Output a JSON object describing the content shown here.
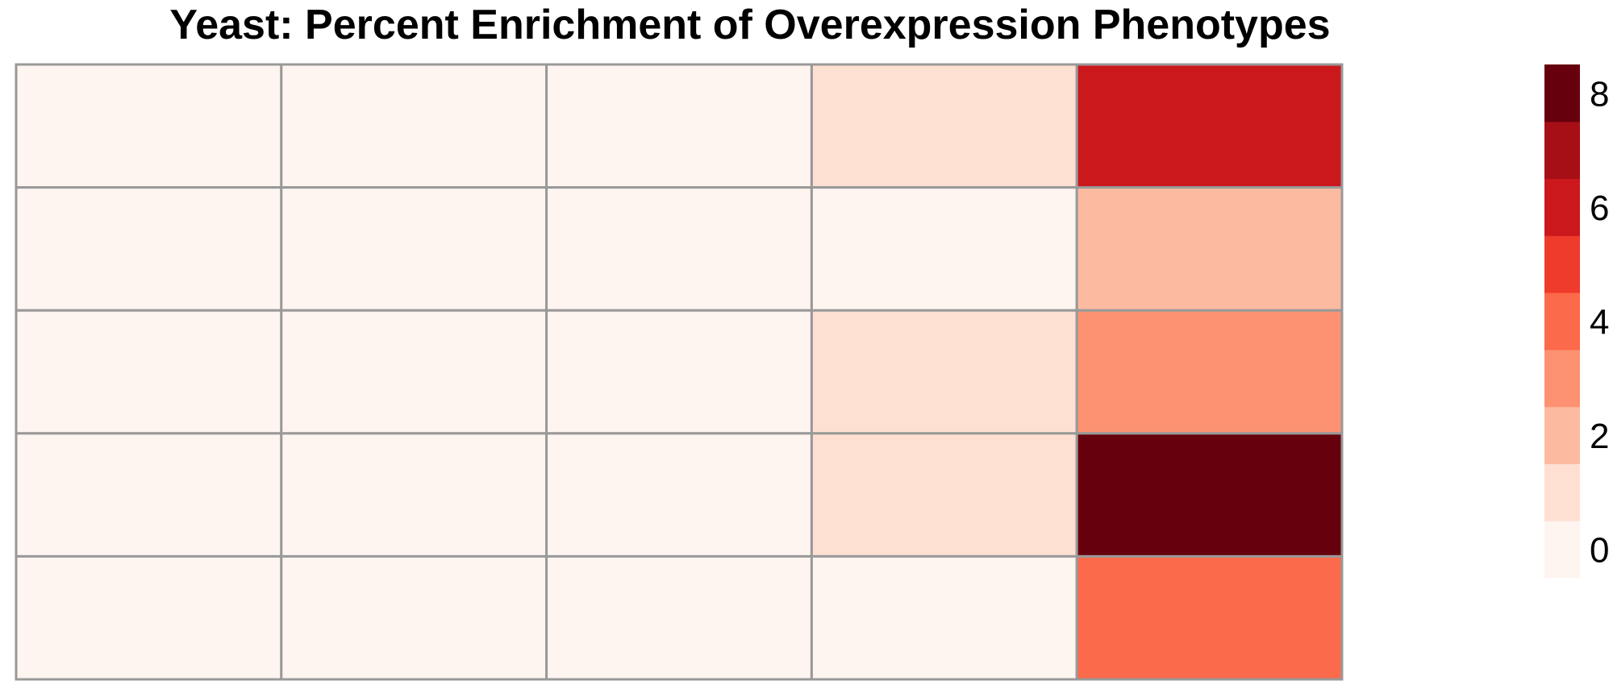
{
  "chart_data": {
    "type": "heatmap",
    "title": "Yeast: Percent Enrichment of Overexpression Phenotypes",
    "grid": true,
    "rows": 5,
    "cols": 5,
    "values": [
      [
        0.2,
        0.2,
        0.2,
        1.5,
        6.5
      ],
      [
        0.2,
        0.2,
        0.2,
        0.5,
        2.5
      ],
      [
        0.2,
        0.2,
        0.2,
        1.5,
        3.5
      ],
      [
        0.2,
        0.2,
        0.2,
        1.5,
        8.5
      ],
      [
        0.2,
        0.2,
        0.2,
        0.5,
        4.5
      ]
    ],
    "color_bins": [
      {
        "min": 0,
        "max": 1,
        "color": "#FFF5F0"
      },
      {
        "min": 1,
        "max": 2,
        "color": "#FEE0D2"
      },
      {
        "min": 2,
        "max": 3,
        "color": "#FCBBA1"
      },
      {
        "min": 3,
        "max": 4,
        "color": "#FC9272"
      },
      {
        "min": 4,
        "max": 5,
        "color": "#FB6A4A"
      },
      {
        "min": 5,
        "max": 6,
        "color": "#EF3B2C"
      },
      {
        "min": 6,
        "max": 7,
        "color": "#CB181D"
      },
      {
        "min": 7,
        "max": 8,
        "color": "#A50F15"
      },
      {
        "min": 8,
        "max": 9,
        "color": "#67000D"
      }
    ],
    "legend": {
      "position": "right",
      "range": [
        0,
        9
      ],
      "ticks": [
        0,
        2,
        4,
        6,
        8
      ],
      "tick_labels": [
        "0",
        "2",
        "4",
        "6",
        "8"
      ]
    },
    "grid_color": "#999999"
  }
}
